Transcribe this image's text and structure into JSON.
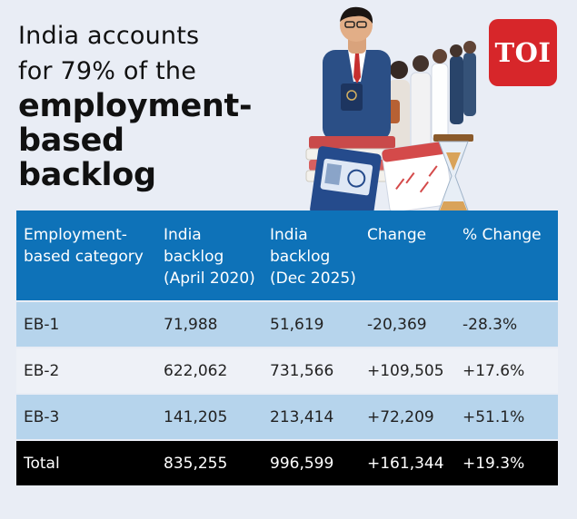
{
  "title": {
    "line1": "India accounts",
    "line2": "for 79% of the",
    "line3": "employment-",
    "line4": "based",
    "line5": "backlog"
  },
  "logo": {
    "text": "TOI",
    "color": "#d7262a"
  },
  "colors": {
    "header": "#0e72b8",
    "row_light_blue": "#b6d4ec",
    "row_white": "#eef1f7",
    "total": "#000000"
  },
  "illustration": {
    "icon": "professional-with-passport-queue-hourglass-icon"
  },
  "chart_data": {
    "type": "table",
    "title": "India accounts for 79% of the employment-based backlog",
    "columns": [
      "Employment-based category",
      "India backlog (April 2020)",
      "India backlog (Dec 2025)",
      "Change",
      "% Change"
    ],
    "rows": [
      [
        "EB-1",
        "71,988",
        "51,619",
        "-20,369",
        "-28.3%"
      ],
      [
        "EB-2",
        "622,062",
        "731,566",
        "+109,505",
        "+17.6%"
      ],
      [
        "EB-3",
        "141,205",
        "213,414",
        "+72,209",
        "+51.1%"
      ],
      [
        "Total",
        "835,255",
        "996,599",
        "+161,344",
        "+19.3%"
      ]
    ]
  }
}
